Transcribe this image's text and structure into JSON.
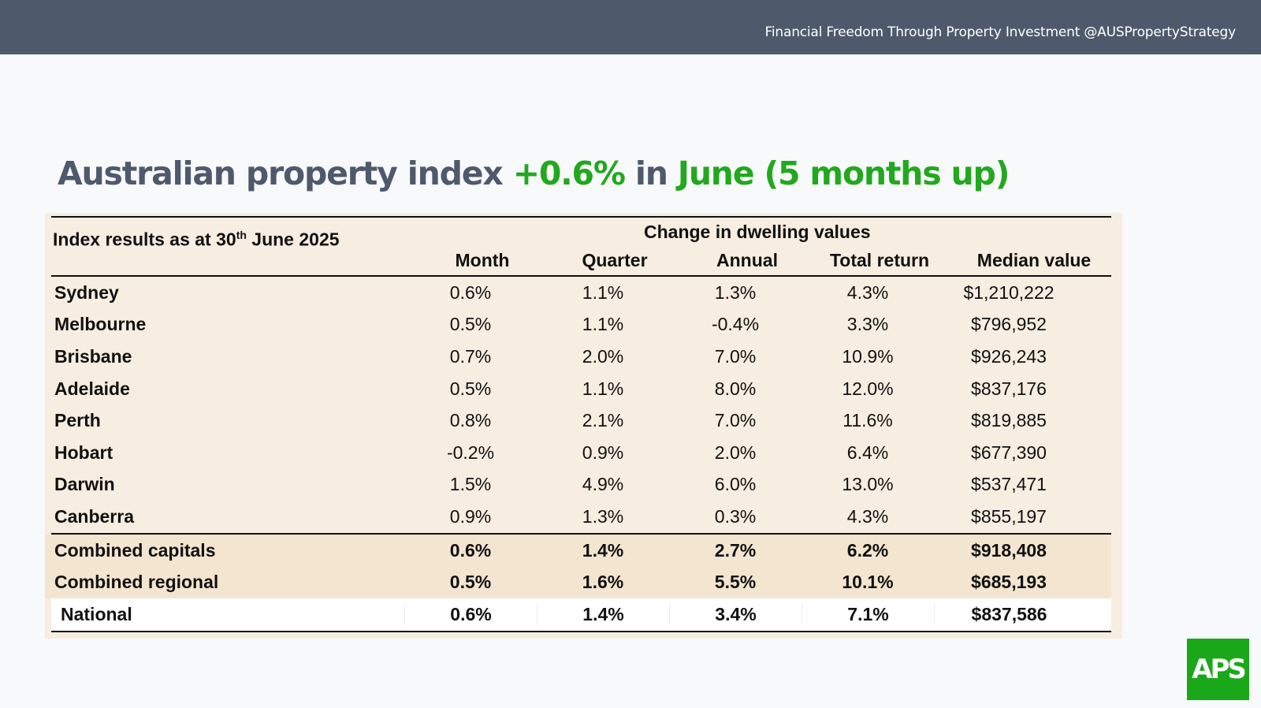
{
  "header": {
    "tagline": "Financial Freedom Through Property Investment @AUSPropertyStrategy"
  },
  "title": {
    "part1": "Australian property index ",
    "part2": "+0.6%",
    "part3": " in ",
    "part4": "June (5 months up)"
  },
  "table": {
    "caption_prefix": "Index results as at 30",
    "caption_sup": "th",
    "caption_suffix": " June 2025",
    "group_header": "Change in dwelling values",
    "columns": [
      "Month",
      "Quarter",
      "Annual",
      "Total return",
      "Median value"
    ],
    "rows": [
      {
        "name": "Sydney",
        "values": [
          "0.6%",
          "1.1%",
          "1.3%",
          "4.3%",
          "$1,210,222"
        ]
      },
      {
        "name": "Melbourne",
        "values": [
          "0.5%",
          "1.1%",
          "-0.4%",
          "3.3%",
          "$796,952"
        ]
      },
      {
        "name": "Brisbane",
        "values": [
          "0.7%",
          "2.0%",
          "7.0%",
          "10.9%",
          "$926,243"
        ]
      },
      {
        "name": "Adelaide",
        "values": [
          "0.5%",
          "1.1%",
          "8.0%",
          "12.0%",
          "$837,176"
        ]
      },
      {
        "name": "Perth",
        "values": [
          "0.8%",
          "2.1%",
          "7.0%",
          "11.6%",
          "$819,885"
        ]
      },
      {
        "name": "Hobart",
        "values": [
          "-0.2%",
          "0.9%",
          "2.0%",
          "6.4%",
          "$677,390"
        ]
      },
      {
        "name": "Darwin",
        "values": [
          "1.5%",
          "4.9%",
          "6.0%",
          "13.0%",
          "$537,471"
        ]
      },
      {
        "name": "Canberra",
        "values": [
          "0.9%",
          "1.3%",
          "0.3%",
          "4.3%",
          "$855,197"
        ]
      }
    ],
    "summary_rows": [
      {
        "name": "Combined capitals",
        "values": [
          "0.6%",
          "1.4%",
          "2.7%",
          "6.2%",
          "$918,408"
        ]
      },
      {
        "name": "Combined regional",
        "values": [
          "0.5%",
          "1.6%",
          "5.5%",
          "10.1%",
          "$685,193"
        ]
      },
      {
        "name": "National",
        "values": [
          "0.6%",
          "1.4%",
          "3.4%",
          "7.1%",
          "$837,586"
        ]
      }
    ]
  },
  "logo": {
    "text": "APS",
    "color": "#1aa81a"
  },
  "colors": {
    "topbar": "#4e5a6b",
    "accent_green": "#22a81e",
    "panel": "#f7ede1"
  }
}
